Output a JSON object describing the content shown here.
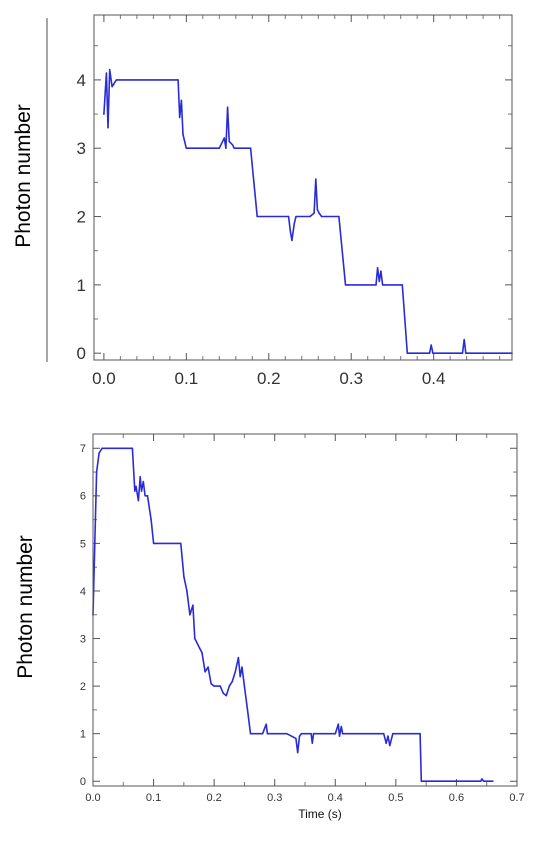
{
  "chart_data": [
    {
      "type": "line",
      "title": "",
      "xlabel": "",
      "ylabel": "Photon number",
      "xlim": [
        -0.012,
        0.495
      ],
      "ylim": [
        -0.1,
        4.95
      ],
      "xticks": [
        0.0,
        0.1,
        0.2,
        0.3,
        0.4
      ],
      "xtick_labels": [
        "0.0",
        "0.1",
        "0.2",
        "0.3",
        "0.4"
      ],
      "yticks": [
        0,
        1,
        2,
        3,
        4
      ],
      "ytick_labels": [
        "0",
        "1",
        "2",
        "3",
        "4"
      ],
      "grid": false,
      "legend": "none",
      "line_color": "#2b2bd6",
      "series": [
        {
          "x": [
            0.0,
            0.003,
            0.005,
            0.007,
            0.01,
            0.015,
            0.09,
            0.092,
            0.094,
            0.096,
            0.1,
            0.103,
            0.14,
            0.146,
            0.148,
            0.15,
            0.152,
            0.156,
            0.158,
            0.165,
            0.178,
            0.182,
            0.186,
            0.19,
            0.224,
            0.226,
            0.228,
            0.231,
            0.233,
            0.25,
            0.255,
            0.257,
            0.259,
            0.261,
            0.264,
            0.27,
            0.285,
            0.289,
            0.293,
            0.296,
            0.33,
            0.332,
            0.334,
            0.336,
            0.338,
            0.34,
            0.362,
            0.365,
            0.368,
            0.37,
            0.395,
            0.397,
            0.399,
            0.401,
            0.435,
            0.437,
            0.439,
            0.441,
            0.495
          ],
          "y": [
            3.5,
            4.1,
            3.3,
            4.15,
            3.9,
            4.0,
            4.0,
            3.45,
            3.7,
            3.2,
            3.0,
            3.0,
            3.0,
            3.15,
            3.0,
            3.6,
            3.1,
            3.05,
            3.0,
            3.0,
            3.0,
            2.5,
            2.0,
            2.0,
            2.0,
            1.8,
            1.65,
            1.9,
            2.0,
            2.0,
            2.05,
            2.55,
            2.1,
            2.05,
            2.0,
            2.0,
            2.0,
            1.5,
            1.0,
            1.0,
            1.0,
            1.25,
            1.05,
            1.2,
            1.0,
            1.0,
            1.0,
            0.5,
            0.0,
            0.0,
            0.0,
            0.12,
            0.0,
            0.0,
            0.0,
            0.2,
            0.0,
            0.0,
            0.0
          ]
        }
      ]
    },
    {
      "type": "line",
      "title": "",
      "xlabel": "Time (s)",
      "ylabel": "Photon number",
      "xlim": [
        0.0,
        0.7
      ],
      "ylim": [
        -0.1,
        7.3
      ],
      "xticks": [
        0.0,
        0.1,
        0.2,
        0.3,
        0.4,
        0.5,
        0.6,
        0.7
      ],
      "xtick_labels": [
        "0.0",
        "0.1",
        "0.2",
        "0.3",
        "0.4",
        "0.5",
        "0.6",
        "0.7"
      ],
      "yticks": [
        0,
        1,
        2,
        3,
        4,
        5,
        6,
        7
      ],
      "ytick_labels": [
        "0",
        "1",
        "2",
        "3",
        "4",
        "5",
        "6",
        "7"
      ],
      "grid": false,
      "legend": "none",
      "line_color": "#2b2bd6",
      "series": [
        {
          "x": [
            0.0,
            0.003,
            0.006,
            0.01,
            0.015,
            0.065,
            0.069,
            0.071,
            0.075,
            0.078,
            0.08,
            0.083,
            0.086,
            0.09,
            0.096,
            0.1,
            0.105,
            0.145,
            0.15,
            0.155,
            0.16,
            0.165,
            0.168,
            0.172,
            0.176,
            0.18,
            0.185,
            0.19,
            0.195,
            0.2,
            0.21,
            0.215,
            0.22,
            0.225,
            0.23,
            0.235,
            0.24,
            0.243,
            0.246,
            0.25,
            0.255,
            0.26,
            0.265,
            0.28,
            0.286,
            0.288,
            0.29,
            0.32,
            0.335,
            0.338,
            0.341,
            0.344,
            0.36,
            0.362,
            0.364,
            0.4,
            0.405,
            0.407,
            0.41,
            0.412,
            0.415,
            0.48,
            0.484,
            0.487,
            0.49,
            0.495,
            0.54,
            0.542,
            0.545,
            0.6,
            0.64,
            0.642,
            0.645,
            0.66
          ],
          "y": [
            3.5,
            5.0,
            6.5,
            6.9,
            7.0,
            7.0,
            6.1,
            6.2,
            5.9,
            6.4,
            6.1,
            6.3,
            6.0,
            6.0,
            5.5,
            5.0,
            5.0,
            5.0,
            4.3,
            4.0,
            3.5,
            3.7,
            3.0,
            2.9,
            2.8,
            2.7,
            2.3,
            2.4,
            2.05,
            2.0,
            2.0,
            1.85,
            1.8,
            2.0,
            2.1,
            2.3,
            2.6,
            2.2,
            2.4,
            2.0,
            1.5,
            1.0,
            1.0,
            1.0,
            1.2,
            1.0,
            1.0,
            1.0,
            0.9,
            0.6,
            0.95,
            1.0,
            1.0,
            0.8,
            1.0,
            1.0,
            1.2,
            0.95,
            1.15,
            1.0,
            1.0,
            1.0,
            0.8,
            0.95,
            0.75,
            1.0,
            1.0,
            0.0,
            0.0,
            0.0,
            0.0,
            0.05,
            0.0,
            0.0
          ]
        }
      ]
    }
  ]
}
